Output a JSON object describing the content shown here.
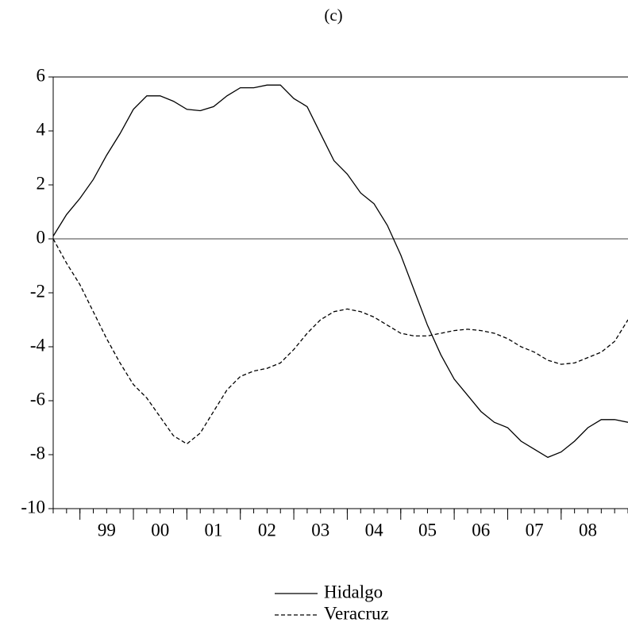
{
  "chart_data": {
    "type": "line",
    "title": "(c)",
    "x": [
      1998.5,
      1998.75,
      1999,
      1999.25,
      1999.5,
      1999.75,
      2000,
      2000.25,
      2000.5,
      2000.75,
      2001,
      2001.25,
      2001.5,
      2001.75,
      2002,
      2002.25,
      2002.5,
      2002.75,
      2003,
      2003.25,
      2003.5,
      2003.75,
      2004,
      2004.25,
      2004.5,
      2004.75,
      2005,
      2005.25,
      2005.5,
      2005.75,
      2006,
      2006.25,
      2006.5,
      2006.75,
      2007,
      2007.25,
      2007.5,
      2007.75,
      2008,
      2008.25,
      2008.5,
      2008.75,
      2009,
      2009.25
    ],
    "series": [
      {
        "name": "Hidalgo",
        "color": "#000000",
        "dash": "solid",
        "values": [
          0.1,
          0.9,
          1.5,
          2.2,
          3.1,
          3.9,
          4.8,
          5.3,
          5.3,
          5.1,
          4.8,
          4.75,
          4.9,
          5.3,
          5.6,
          5.6,
          5.7,
          5.7,
          5.2,
          4.9,
          3.9,
          2.9,
          2.4,
          1.7,
          1.3,
          0.5,
          -0.6,
          -1.9,
          -3.2,
          -4.3,
          -5.2,
          -5.8,
          -6.4,
          -6.8,
          -7.0,
          -7.5,
          -7.8,
          -8.1,
          -7.9,
          -7.5,
          -7.0,
          -6.7,
          -6.7,
          -6.8
        ]
      },
      {
        "name": "Veracruz",
        "color": "#000000",
        "dash": "dashed",
        "values": [
          0,
          -0.9,
          -1.7,
          -2.7,
          -3.7,
          -4.6,
          -5.4,
          -5.9,
          -6.6,
          -7.3,
          -7.6,
          -7.2,
          -6.4,
          -5.6,
          -5.1,
          -4.9,
          -4.8,
          -4.6,
          -4.1,
          -3.5,
          -3.0,
          -2.7,
          -2.6,
          -2.7,
          -2.9,
          -3.2,
          -3.5,
          -3.6,
          -3.6,
          -3.5,
          -3.4,
          -3.35,
          -3.4,
          -3.5,
          -3.7,
          -4.0,
          -4.2,
          -4.5,
          -4.65,
          -4.6,
          -4.4,
          -4.2,
          -3.8,
          -3.0
        ]
      }
    ],
    "xlim": [
      1998.5,
      2009.25
    ],
    "xticks": [
      {
        "value": 1999,
        "label": "99"
      },
      {
        "value": 2000,
        "label": "00"
      },
      {
        "value": 2001,
        "label": "01"
      },
      {
        "value": 2002,
        "label": "02"
      },
      {
        "value": 2003,
        "label": "03"
      },
      {
        "value": 2004,
        "label": "04"
      },
      {
        "value": 2005,
        "label": "05"
      },
      {
        "value": 2006,
        "label": "06"
      },
      {
        "value": 2007,
        "label": "07"
      },
      {
        "value": 2008,
        "label": "08"
      }
    ],
    "ylim": [
      -10,
      6
    ],
    "yticks": [
      -10,
      -8,
      -6,
      -4,
      -2,
      0,
      2,
      4,
      6
    ],
    "zero_line": true,
    "legend": "bottom"
  }
}
